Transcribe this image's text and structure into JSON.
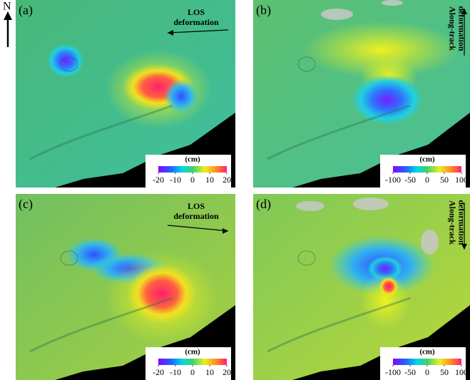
{
  "north": "N",
  "panels": [
    {
      "label": "(a)",
      "annotation": [
        "LOS",
        "deformation"
      ],
      "colorbar": {
        "unit": "(cm)",
        "ticks": [
          -20,
          -10,
          0,
          10,
          20
        ]
      }
    },
    {
      "label": "(b)",
      "annotation": [
        "Along-track",
        "deformation"
      ],
      "colorbar": {
        "unit": "(cm)",
        "ticks": [
          -100,
          -50,
          0,
          50,
          100
        ]
      }
    },
    {
      "label": "(c)",
      "annotation": [
        "LOS",
        "deformation"
      ],
      "colorbar": {
        "unit": "(cm)",
        "ticks": [
          -20,
          -10,
          0,
          10,
          20
        ]
      }
    },
    {
      "label": "(d)",
      "annotation": [
        "Along-track",
        "deformation"
      ],
      "colorbar": {
        "unit": "(cm)",
        "ticks": [
          -100,
          -50,
          0,
          50,
          100
        ]
      }
    }
  ]
}
